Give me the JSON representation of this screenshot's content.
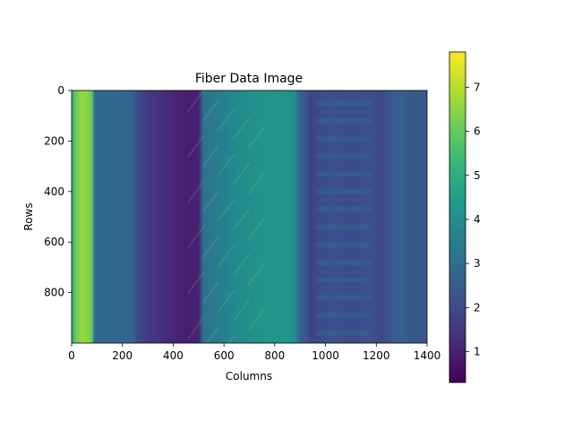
{
  "chart_data": {
    "type": "heatmap",
    "title": "Fiber Data Image",
    "xlabel": "Columns",
    "ylabel": "Rows",
    "xlim": [
      0,
      1400
    ],
    "ylim": [
      1000,
      0
    ],
    "x_ticks": [
      0,
      200,
      400,
      600,
      800,
      1000,
      1200,
      1400
    ],
    "y_ticks": [
      0,
      200,
      400,
      600,
      800
    ],
    "colormap": "viridis",
    "colorbar": {
      "min": 0.3,
      "max": 7.8,
      "ticks": [
        1,
        2,
        3,
        4,
        5,
        6,
        7
      ]
    },
    "grid": false,
    "column_profile": {
      "x": [
        0,
        20,
        40,
        60,
        80,
        90,
        120,
        160,
        200,
        240,
        260,
        300,
        340,
        380,
        420,
        460,
        500,
        520,
        560,
        600,
        640,
        680,
        720,
        760,
        800,
        840,
        880,
        900,
        920,
        940,
        980,
        1020,
        1060,
        1100,
        1140,
        1180,
        1220,
        1260,
        1300,
        1340,
        1380,
        1400
      ],
      "values": [
        4.8,
        6.2,
        6.6,
        6.5,
        6.0,
        2.9,
        2.8,
        2.9,
        2.8,
        2.7,
        2.0,
        1.6,
        1.4,
        1.2,
        1.0,
        0.9,
        1.0,
        3.2,
        3.4,
        3.6,
        3.8,
        4.0,
        4.1,
        4.2,
        4.3,
        4.2,
        4.0,
        2.6,
        2.4,
        1.8,
        2.0,
        2.2,
        2.1,
        2.0,
        2.1,
        2.2,
        1.9,
        2.4,
        2.6,
        2.3,
        2.4,
        2.3
      ]
    }
  }
}
